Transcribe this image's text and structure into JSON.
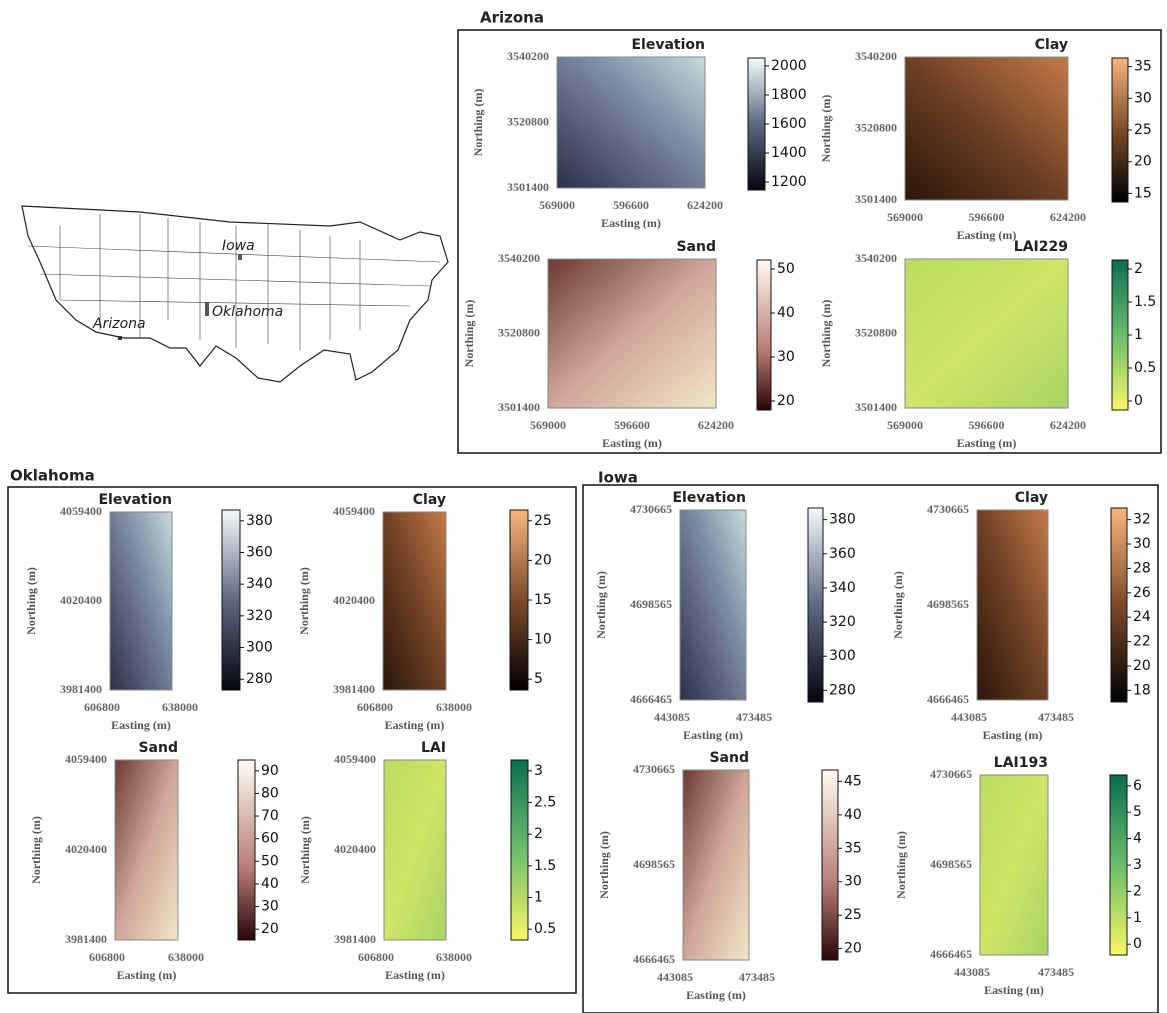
{
  "map": {
    "labels": [
      "Iowa",
      "Oklahoma",
      "Arizona"
    ]
  },
  "regions": [
    {
      "name": "Arizona",
      "panels": [
        {
          "title": "Elevation",
          "x_label": "Easting (m)",
          "y_label": "Northing (m)",
          "xticks": [
            569000,
            596600,
            624200
          ],
          "yticks": [
            3540200,
            3520800,
            3501400
          ],
          "colorbar_ticks": [
            1200,
            1400,
            1600,
            1800,
            2000
          ]
        },
        {
          "title": "Clay",
          "x_label": "Easting (m)",
          "y_label": "Northing (m)",
          "xticks": [
            569000,
            596600,
            624200
          ],
          "yticks": [
            3540200,
            3520800,
            3501400
          ],
          "colorbar_ticks": [
            15,
            20,
            25,
            30,
            35
          ]
        },
        {
          "title": "Sand",
          "x_label": "Easting (m)",
          "y_label": "Northing (m)",
          "xticks": [
            569000,
            596600,
            624200
          ],
          "yticks": [
            3540200,
            3520800,
            3501400
          ],
          "colorbar_ticks": [
            20,
            30,
            40,
            50
          ]
        },
        {
          "title": "LAI229",
          "x_label": "Easting (m)",
          "y_label": "Northing (m)",
          "xticks": [
            569000,
            596600,
            624200
          ],
          "yticks": [
            3540200,
            3520800,
            3501400
          ],
          "colorbar_ticks": [
            0,
            0.5,
            1,
            1.5,
            2
          ]
        }
      ]
    },
    {
      "name": "Oklahoma",
      "panels": [
        {
          "title": "Elevation",
          "x_label": "Easting (m)",
          "y_label": "Northing (m)",
          "xticks": [
            606800,
            638000
          ],
          "yticks": [
            4059400,
            4020400,
            3981400
          ],
          "colorbar_ticks": [
            280,
            300,
            320,
            340,
            360,
            380
          ]
        },
        {
          "title": "Clay",
          "x_label": "Easting (m)",
          "y_label": "Northing (m)",
          "xticks": [
            606800,
            638000
          ],
          "yticks": [
            4059400,
            4020400,
            3981400
          ],
          "colorbar_ticks": [
            5,
            10,
            15,
            20,
            25
          ]
        },
        {
          "title": "Sand",
          "x_label": "Easting (m)",
          "y_label": "Northing (m)",
          "xticks": [
            606800,
            638000
          ],
          "yticks": [
            4059400,
            4020400,
            3981400
          ],
          "colorbar_ticks": [
            20,
            30,
            40,
            50,
            60,
            70,
            80,
            90
          ]
        },
        {
          "title": "LAI",
          "x_label": "Easting (m)",
          "y_label": "Northing (m)",
          "xticks": [
            606800,
            638000
          ],
          "yticks": [
            4059400,
            4020400,
            3981400
          ],
          "colorbar_ticks": [
            0.5,
            1,
            1.5,
            2,
            2.5,
            3
          ]
        }
      ]
    },
    {
      "name": "Iowa",
      "panels": [
        {
          "title": "Elevation",
          "x_label": "Easting (m)",
          "y_label": "Northing (m)",
          "xticks": [
            443085,
            473485
          ],
          "yticks": [
            4730665,
            4698565,
            4666465
          ],
          "colorbar_ticks": [
            280,
            300,
            320,
            340,
            360,
            380
          ]
        },
        {
          "title": "Clay",
          "x_label": "Easting (m)",
          "y_label": "Northing (m)",
          "xticks": [
            443085,
            473485
          ],
          "yticks": [
            4730665,
            4698565,
            4666465
          ],
          "colorbar_ticks": [
            18,
            20,
            22,
            24,
            26,
            28,
            30,
            32
          ]
        },
        {
          "title": "Sand",
          "x_label": "Easting (m)",
          "y_label": "Northing (m)",
          "xticks": [
            443085,
            473485
          ],
          "yticks": [
            4730665,
            4698565,
            4666465
          ],
          "colorbar_ticks": [
            20,
            25,
            30,
            35,
            40,
            45
          ]
        },
        {
          "title": "LAI193",
          "x_label": "Easting (m)",
          "y_label": "Northing (m)",
          "xticks": [
            443085,
            473485
          ],
          "yticks": [
            4730665,
            4698565,
            4666465
          ],
          "colorbar_ticks": [
            0,
            1,
            2,
            3,
            4,
            5,
            6
          ]
        }
      ]
    }
  ]
}
